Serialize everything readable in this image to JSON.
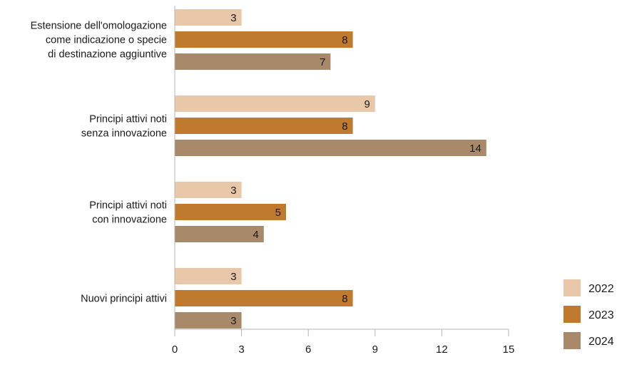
{
  "chart_data": {
    "type": "bar",
    "orientation": "horizontal",
    "categories": [
      [
        "Estensione dell'omologazione",
        "come indicazione o specie",
        "di destinazione aggiuntive"
      ],
      [
        "Principi attivi noti",
        "senza innovazione"
      ],
      [
        "Principi attivi noti",
        "con innovazione"
      ],
      [
        "Nuovi principi attivi"
      ]
    ],
    "series": [
      {
        "name": "2022",
        "color": "#e8c8a8",
        "values": [
          3,
          9,
          3,
          3
        ]
      },
      {
        "name": "2023",
        "color": "#c07a2e",
        "values": [
          8,
          8,
          5,
          8
        ]
      },
      {
        "name": "2024",
        "color": "#a88a6a",
        "values": [
          7,
          14,
          4,
          3
        ]
      }
    ],
    "xlim": [
      0,
      15
    ],
    "xticks": [
      0,
      3,
      6,
      9,
      12,
      15
    ],
    "grid": false,
    "legend_position": "bottom-right",
    "title": "",
    "xlabel": "",
    "ylabel": ""
  }
}
